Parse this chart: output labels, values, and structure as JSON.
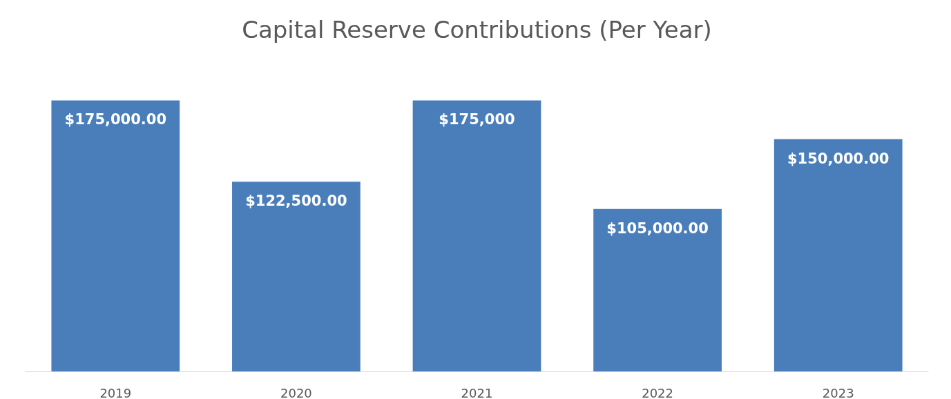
{
  "chart_data": {
    "type": "bar",
    "title": "Capital Reserve Contributions (Per Year)",
    "categories": [
      "2019",
      "2020",
      "2021",
      "2022",
      "2023"
    ],
    "values": [
      175000,
      122500,
      175000,
      105000,
      150000
    ],
    "value_labels": [
      "$175,000.00",
      "$122,500.00",
      "$175,000",
      "$105,000.00",
      "$150,000.00"
    ],
    "color": "#4a7ebb"
  }
}
